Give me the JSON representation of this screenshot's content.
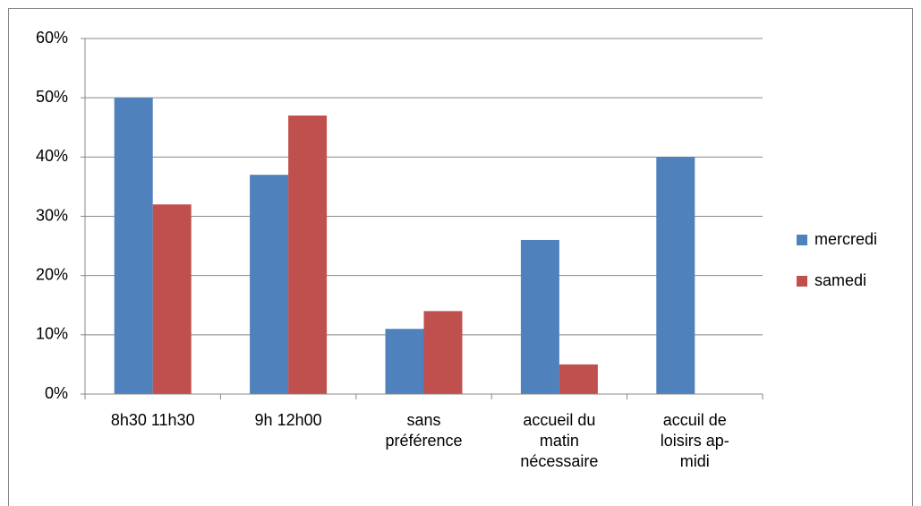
{
  "chart_data": {
    "type": "bar",
    "categories": [
      "8h30 - 11h30",
      "9h - 12h00",
      "sans préférence",
      "accueil du matin nécessaire",
      "accuil de loisirs ap-midi"
    ],
    "series": [
      {
        "name": "mercredi",
        "color": "#4f81bd",
        "values": [
          50,
          37,
          11,
          26,
          40
        ]
      },
      {
        "name": "samedi",
        "color": "#c0504d",
        "values": [
          32,
          47,
          14,
          5,
          0
        ]
      }
    ],
    "ylim": [
      0,
      60
    ],
    "yticks": [
      {
        "value": 0,
        "label": "0%"
      },
      {
        "value": 10,
        "label": "10%"
      },
      {
        "value": 20,
        "label": "20%"
      },
      {
        "value": 30,
        "label": "30%"
      },
      {
        "value": 40,
        "label": "40%"
      },
      {
        "value": 50,
        "label": "50%"
      },
      {
        "value": 60,
        "label": "60%"
      }
    ],
    "grid": true,
    "legend": "right"
  }
}
